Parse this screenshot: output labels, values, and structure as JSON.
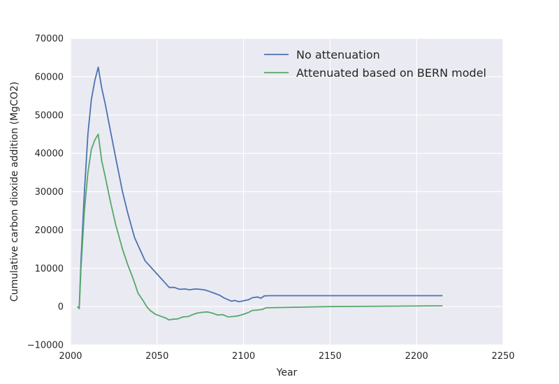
{
  "chart_data": {
    "type": "line",
    "title": "",
    "xlabel": "Year",
    "ylabel": "Cumulative carbon dioxide addition (MgCO2)",
    "xlim": [
      2000,
      2250
    ],
    "ylim": [
      -10000,
      70000
    ],
    "x_ticks": [
      2000,
      2050,
      2100,
      2150,
      2200,
      2250
    ],
    "y_ticks": [
      -10000,
      0,
      10000,
      20000,
      30000,
      40000,
      50000,
      60000,
      70000
    ],
    "x_tick_labels": [
      "2000",
      "2050",
      "2100",
      "2150",
      "2200",
      "2250"
    ],
    "y_tick_labels": [
      "−10000",
      "0",
      "10000",
      "20000",
      "30000",
      "40000",
      "50000",
      "60000",
      "70000"
    ],
    "grid": true,
    "legend_position": "top-right",
    "series": [
      {
        "name": "No attenuation",
        "color": "#4c72b0",
        "x": [
          2004,
          2005,
          2006,
          2008,
          2010,
          2012,
          2014,
          2016,
          2018,
          2020,
          2023,
          2026,
          2030,
          2033,
          2037,
          2040,
          2043,
          2045,
          2048,
          2050,
          2052,
          2055,
          2057,
          2060,
          2063,
          2066,
          2069,
          2072,
          2075,
          2078,
          2080,
          2083,
          2086,
          2089,
          2091,
          2093,
          2095,
          2097,
          2099,
          2101,
          2103,
          2105,
          2108,
          2110,
          2112,
          2115,
          2130,
          2150,
          2170,
          2190,
          2215
        ],
        "y": [
          0,
          -500,
          12000,
          30000,
          45000,
          54000,
          59000,
          62500,
          57000,
          53000,
          46000,
          39000,
          30000,
          24500,
          18000,
          15000,
          12000,
          11000,
          9500,
          8500,
          7500,
          6000,
          5000,
          5000,
          4500,
          4600,
          4400,
          4600,
          4500,
          4300,
          4000,
          3500,
          3000,
          2200,
          1800,
          1400,
          1600,
          1300,
          1400,
          1600,
          1800,
          2300,
          2500,
          2200,
          2800,
          2850,
          2850,
          2850,
          2850,
          2850,
          2850
        ]
      },
      {
        "name": "Attenuated based on BERN model",
        "color": "#55a868",
        "x": [
          2004,
          2005,
          2006,
          2008,
          2010,
          2012,
          2014,
          2016,
          2018,
          2020,
          2023,
          2026,
          2030,
          2033,
          2036,
          2039,
          2042,
          2044,
          2046,
          2049,
          2052,
          2055,
          2057,
          2059,
          2062,
          2065,
          2068,
          2070,
          2073,
          2076,
          2079,
          2082,
          2085,
          2088,
          2091,
          2094,
          2097,
          2100,
          2103,
          2105,
          2108,
          2111,
          2113,
          2150,
          2215
        ],
        "y": [
          0,
          -500,
          10000,
          25000,
          35000,
          41000,
          43500,
          45000,
          38000,
          34000,
          27500,
          21500,
          15000,
          11000,
          7500,
          3500,
          1500,
          0,
          -1000,
          -2000,
          -2500,
          -3000,
          -3500,
          -3300,
          -3200,
          -2700,
          -2600,
          -2200,
          -1700,
          -1500,
          -1400,
          -1700,
          -2200,
          -2100,
          -2700,
          -2600,
          -2400,
          -2000,
          -1500,
          -1000,
          -900,
          -700,
          -300,
          0,
          200
        ]
      }
    ]
  }
}
